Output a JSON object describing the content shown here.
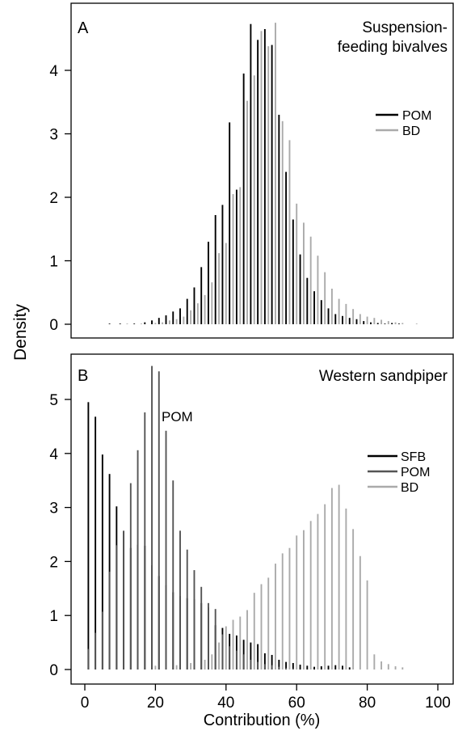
{
  "figure": {
    "ylabel": "Density",
    "xlabel": "Contribution (%)"
  },
  "chart_data": [
    {
      "type": "bar",
      "panel_letter": "A",
      "title_lines": [
        "Suspension-",
        "feeding bivalves"
      ],
      "xlim": [
        -5,
        100
      ],
      "ylim": [
        -0.1,
        5.0
      ],
      "yticks": [
        0,
        1,
        2,
        3,
        4
      ],
      "ytick_labels": [
        "0",
        "1",
        "2",
        "3",
        "4"
      ],
      "legend": {
        "placement": "right",
        "entries": [
          "POM",
          "BD"
        ]
      },
      "series": [
        {
          "name": "POM",
          "color": "#000000",
          "x": [
            7,
            10,
            14,
            17,
            19,
            21,
            23,
            25,
            27,
            29,
            31,
            33,
            35,
            37,
            39,
            41,
            43,
            45,
            47,
            49,
            51,
            53,
            55,
            57,
            59,
            61,
            63,
            65,
            67,
            69,
            71,
            73,
            75,
            77,
            79,
            81,
            83,
            85,
            87,
            89
          ],
          "values": [
            0.01,
            0.01,
            0.01,
            0.03,
            0.06,
            0.1,
            0.14,
            0.2,
            0.25,
            0.4,
            0.58,
            0.9,
            1.3,
            1.72,
            1.88,
            3.18,
            2.12,
            3.95,
            4.73,
            4.48,
            4.65,
            4.4,
            3.3,
            2.4,
            1.65,
            1.1,
            0.73,
            0.52,
            0.38,
            0.25,
            0.16,
            0.13,
            0.1,
            0.08,
            0.05,
            0.03,
            0.02,
            0.01,
            0.02,
            0.01
          ]
        },
        {
          "name": "BD",
          "color": "#aaaaaa",
          "x": [
            12,
            16,
            20,
            22,
            24,
            26,
            28,
            30,
            32,
            34,
            36,
            38,
            40,
            42,
            44,
            46,
            48,
            50,
            52,
            54,
            56,
            58,
            60,
            62,
            64,
            66,
            68,
            70,
            72,
            74,
            76,
            78,
            80,
            82,
            84,
            86,
            88,
            90,
            94
          ],
          "values": [
            0.01,
            0.01,
            0.02,
            0.03,
            0.06,
            0.08,
            0.12,
            0.22,
            0.33,
            0.46,
            0.66,
            1.12,
            1.28,
            2.05,
            2.16,
            3.52,
            3.92,
            4.62,
            4.38,
            4.75,
            3.2,
            2.9,
            1.9,
            1.6,
            1.38,
            1.08,
            0.82,
            0.56,
            0.4,
            0.32,
            0.24,
            0.16,
            0.12,
            0.1,
            0.07,
            0.05,
            0.03,
            0.02,
            0.01
          ]
        }
      ]
    },
    {
      "type": "bar",
      "panel_letter": "B",
      "title_lines": [
        "Western sandpiper"
      ],
      "annotation": "POM",
      "xlim": [
        -5,
        100
      ],
      "ylim": [
        -0.1,
        5.85
      ],
      "yticks": [
        0,
        1,
        2,
        3,
        4,
        5
      ],
      "ytick_labels": [
        "0",
        "1",
        "2",
        "3",
        "4",
        "5"
      ],
      "xticks": [
        0,
        20,
        40,
        60,
        80,
        100
      ],
      "xtick_labels": [
        "0",
        "20",
        "40",
        "60",
        "80",
        "100"
      ],
      "legend": {
        "placement": "right",
        "entries": [
          "SFB",
          "POM",
          "BD"
        ]
      },
      "series": [
        {
          "name": "SFB",
          "color": "#000000",
          "x": [
            1,
            3,
            5,
            7,
            9,
            11,
            13,
            15,
            17,
            19,
            21,
            23,
            25,
            27,
            29,
            31,
            33,
            35,
            37,
            39,
            41,
            43,
            45,
            47,
            49,
            51,
            53,
            55,
            57,
            59,
            61,
            63,
            65,
            67,
            69,
            71,
            73,
            75
          ],
          "values": [
            4.95,
            4.68,
            3.98,
            3.62,
            3.02,
            2.56,
            2.25,
            2.31,
            2.29,
            1.93,
            1.73,
            1.56,
            1.43,
            1.36,
            1.32,
            1.3,
            1.23,
            1.15,
            0.82,
            0.77,
            0.66,
            0.63,
            0.55,
            0.5,
            0.47,
            0.3,
            0.27,
            0.18,
            0.14,
            0.12,
            0.09,
            0.07,
            0.05,
            0.06,
            0.07,
            0.08,
            0.07,
            0.04
          ]
        },
        {
          "name": "POM",
          "color": "#555555",
          "x": [
            1,
            3,
            5,
            7,
            9,
            11,
            13,
            15,
            17,
            19,
            21,
            23,
            25,
            27,
            29,
            31,
            33,
            35,
            37,
            39,
            41,
            43,
            45,
            47,
            49,
            51,
            53,
            55,
            57,
            59
          ],
          "values": [
            0.38,
            0.68,
            1.07,
            1.81,
            2.3,
            2.57,
            3.45,
            4.06,
            4.76,
            5.62,
            5.52,
            4.42,
            3.5,
            2.57,
            2.22,
            1.84,
            1.53,
            1.23,
            1.12,
            0.65,
            0.43,
            0.35,
            0.28,
            0.18,
            0.14,
            0.1,
            0.08,
            0.05,
            0.03,
            0.02
          ]
        },
        {
          "name": "BD",
          "color": "#aaaaaa",
          "x": [
            20,
            26,
            30,
            34,
            36,
            38,
            40,
            42,
            44,
            46,
            48,
            50,
            52,
            54,
            56,
            58,
            60,
            62,
            64,
            66,
            68,
            70,
            72,
            74,
            76,
            78,
            80,
            82,
            84,
            86,
            88,
            90
          ],
          "values": [
            0.07,
            0.08,
            0.12,
            0.18,
            0.28,
            0.5,
            0.8,
            0.92,
            0.98,
            1.1,
            1.42,
            1.58,
            1.7,
            1.96,
            2.15,
            2.25,
            2.48,
            2.58,
            2.75,
            2.88,
            3.06,
            3.36,
            3.42,
            2.98,
            2.6,
            2.1,
            1.65,
            0.28,
            0.15,
            0.1,
            0.06,
            0.04
          ]
        }
      ]
    }
  ]
}
